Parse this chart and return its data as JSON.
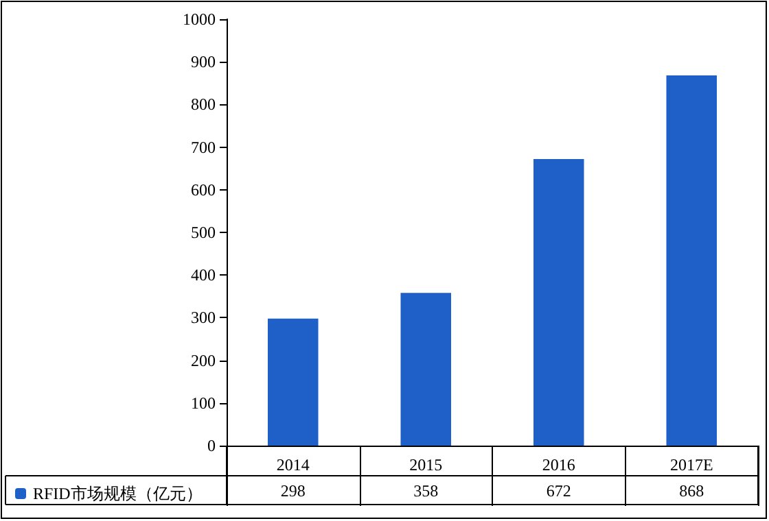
{
  "chart_data": {
    "type": "bar",
    "categories": [
      "2014",
      "2015",
      "2016",
      "2017E"
    ],
    "series": [
      {
        "name": "RFID市场规模（亿元）",
        "color": "#1f5fc8",
        "values": [
          298,
          358,
          672,
          868
        ]
      }
    ],
    "ylim": [
      0,
      1000
    ],
    "yticks": [
      0,
      100,
      200,
      300,
      400,
      500,
      600,
      700,
      800,
      900,
      1000
    ],
    "grid": false,
    "legend": "bottom left",
    "data_labels": true
  }
}
